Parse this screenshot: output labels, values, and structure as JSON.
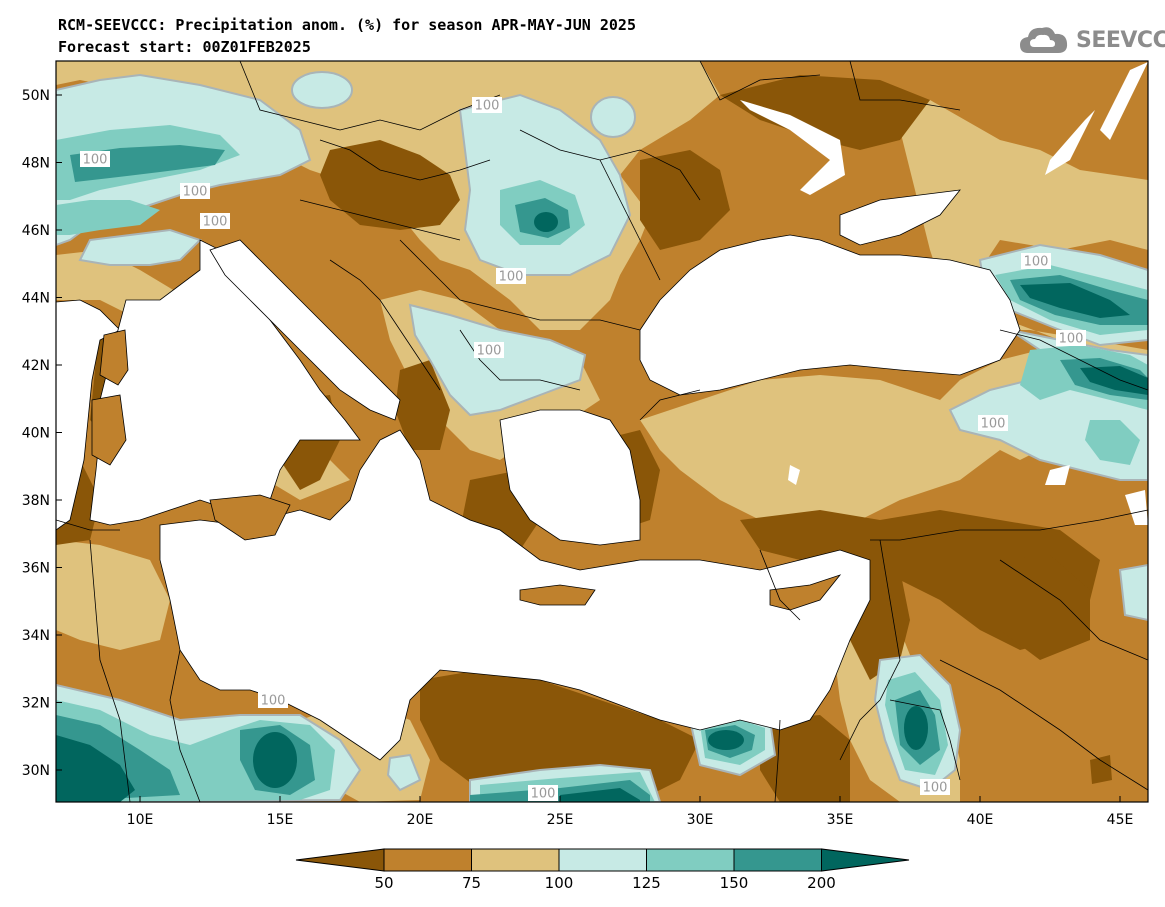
{
  "header": {
    "title_line1": "RCM-SEEVCCC: Precipitation anom. (%) for season APR-MAY-JUN 2025",
    "title_line2": "Forecast start: 00Z01FEB2025"
  },
  "brand": {
    "name": "SEEVCCC",
    "icon": "cloud-logo-icon"
  },
  "axes": {
    "lat_labels": [
      "50N",
      "48N",
      "46N",
      "44N",
      "42N",
      "40N",
      "38N",
      "36N",
      "34N",
      "32N",
      "30N"
    ],
    "lon_labels": [
      "10E",
      "15E",
      "20E",
      "25E",
      "30E",
      "35E",
      "40E",
      "45E"
    ]
  },
  "contour_labels": [
    "100",
    "100",
    "100",
    "100",
    "100",
    "100",
    "100",
    "100",
    "100",
    "100",
    "100",
    "100"
  ],
  "legend": {
    "tick_labels": [
      "50",
      "75",
      "100",
      "125",
      "150",
      "200"
    ],
    "colors": [
      "#8a5608",
      "#bf812d",
      "#dfc27d",
      "#c7eae5",
      "#80cdc1",
      "#35978f",
      "#01665e"
    ]
  },
  "colors": {
    "sea": "#ffffff",
    "dry_extreme": "#8a5608",
    "dry": "#bf812d",
    "slightly_dry": "#dfc27d",
    "slightly_wet": "#c7eae5",
    "wet": "#80cdc1",
    "very_wet": "#35978f",
    "wet_extreme": "#01665e",
    "contour_100": "#a9b4b7"
  }
}
